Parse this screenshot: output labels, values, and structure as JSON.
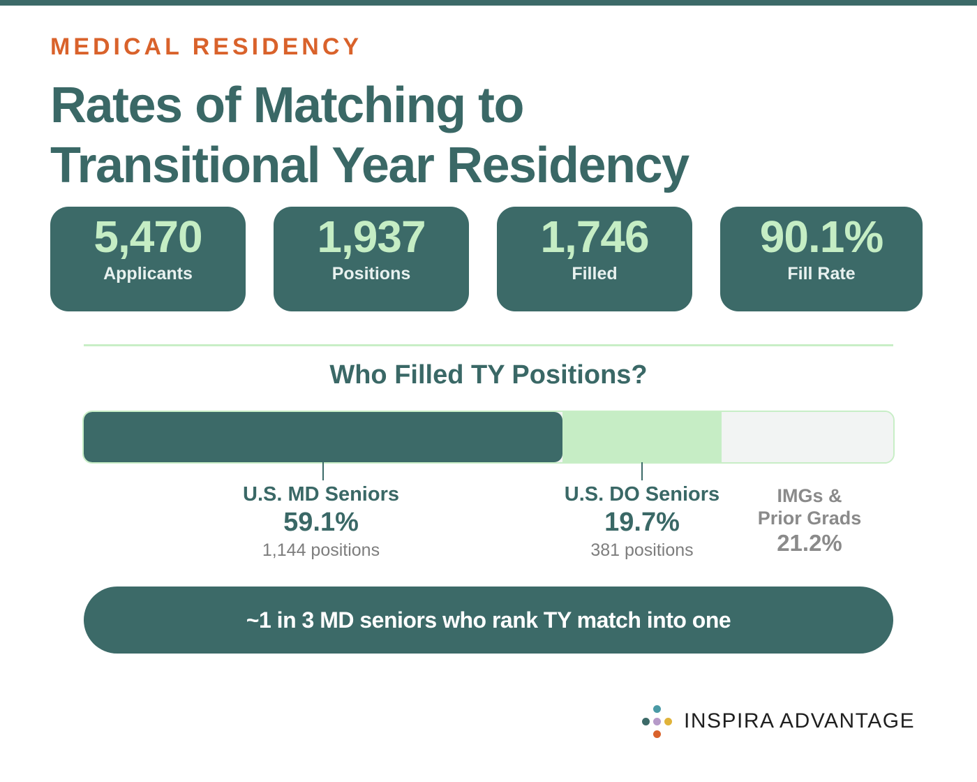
{
  "eyebrow": "MEDICAL RESIDENCY",
  "title": {
    "line1": "Rates of Matching to",
    "line2": "Transitional Year Residency"
  },
  "stats": [
    {
      "value": "5,470",
      "label": "Applicants"
    },
    {
      "value": "1,937",
      "label": "Positions"
    },
    {
      "value": "1,746",
      "label": "Filled"
    },
    {
      "value": "90.1%",
      "label": "Fill Rate"
    }
  ],
  "breakdown": {
    "title": "Who Filled TY Positions?",
    "segments": [
      {
        "name": "U.S. MD Seniors",
        "percent_label": "59.1%",
        "positions_label": "1,144 positions",
        "share": 59.1,
        "color": "#3c6a68"
      },
      {
        "name": "U.S. DO Seniors",
        "percent_label": "19.7%",
        "positions_label": "381 positions",
        "share": 19.7,
        "color": "#c6edc5"
      },
      {
        "name_line1": "IMGs &",
        "name_line2": "Prior Grads",
        "percent_label": "21.2%",
        "share": 21.2,
        "color": "#f2f4f3"
      }
    ]
  },
  "chart_data": {
    "type": "bar",
    "stacked": true,
    "orientation": "horizontal",
    "title": "Who Filled TY Positions?",
    "categories": [
      "U.S. MD Seniors",
      "U.S. DO Seniors",
      "IMGs & Prior Grads"
    ],
    "values": [
      59.1,
      19.7,
      21.2
    ],
    "positions": [
      1144,
      381,
      null
    ],
    "unit": "%"
  },
  "callout": "~1 in 3 MD seniors who rank TY match into one",
  "brand": {
    "name": "INSPIRA ADVANTAGE",
    "dot_colors": [
      "#4a9aa5",
      "#3c6a68",
      "#b69ac9",
      "#e0b33a",
      "#d9622b"
    ]
  },
  "colors": {
    "primary": "#3c6a68",
    "accent_orange": "#d9622b",
    "mint": "#c6edc5"
  }
}
